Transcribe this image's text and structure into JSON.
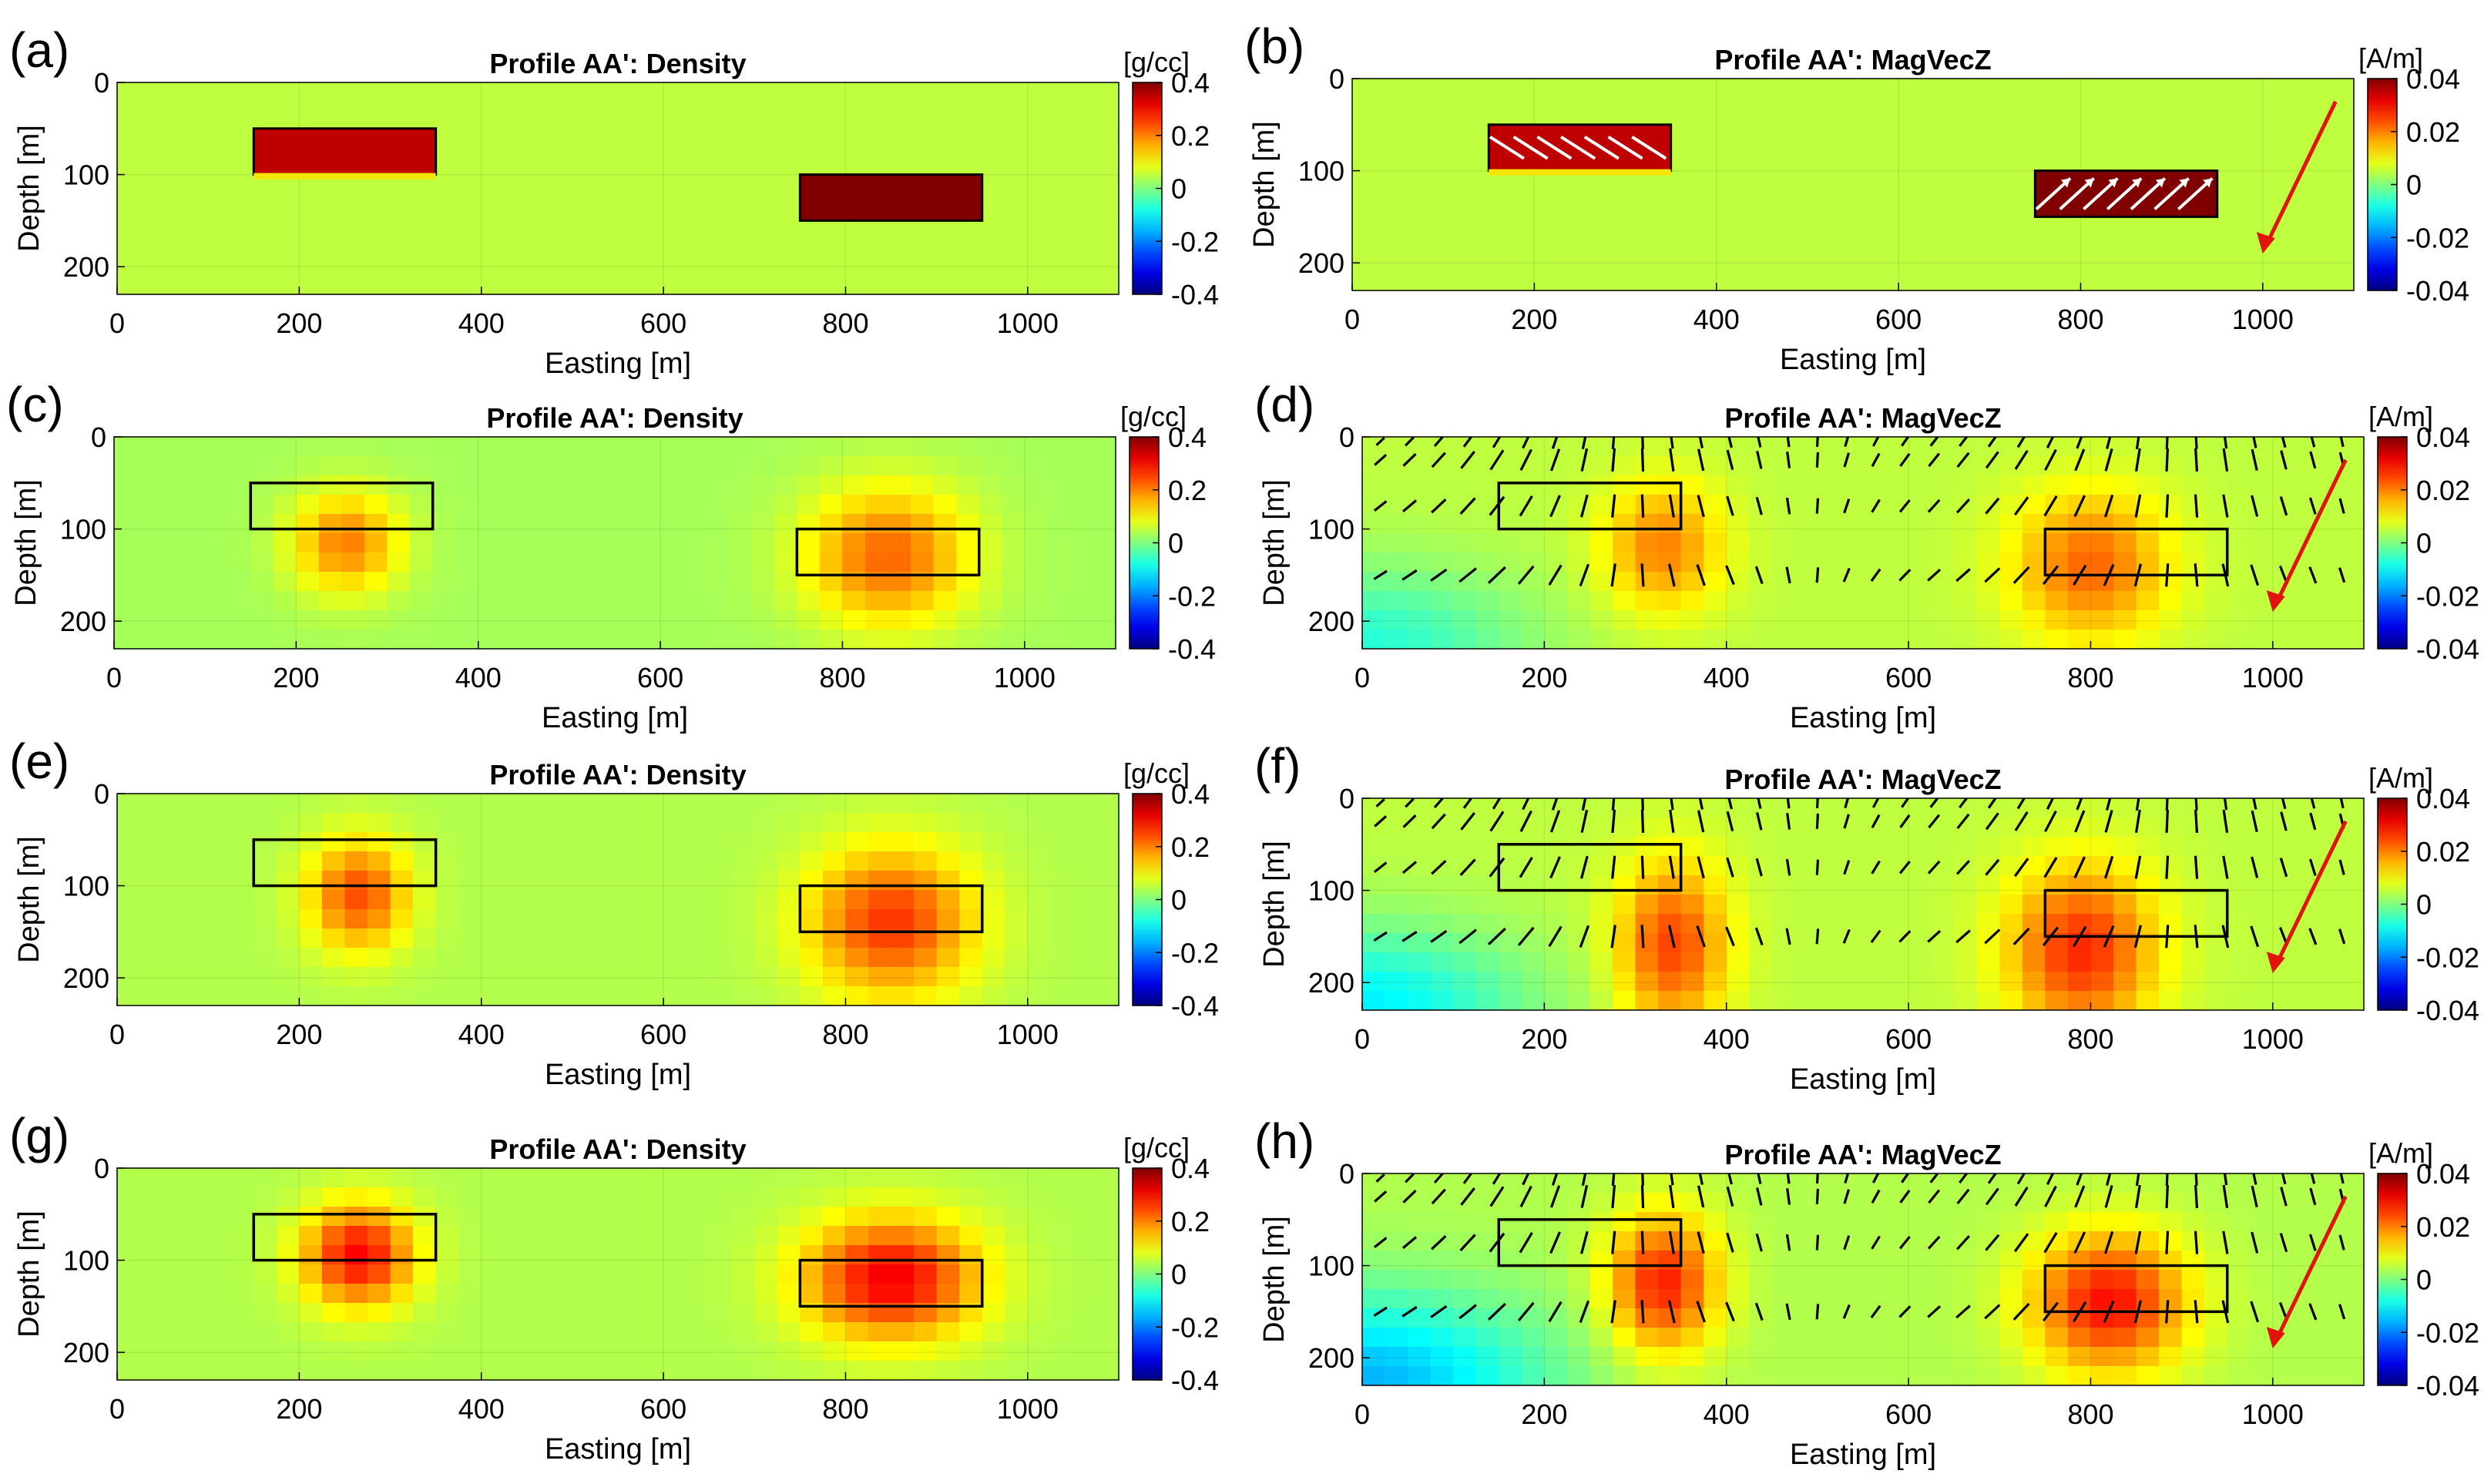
{
  "figure": {
    "units": {
      "density": "[g/cc]",
      "mag": "[A/m]"
    }
  },
  "chart_data": [
    {
      "letter": "(a)",
      "type": "heatmap",
      "title": "Profile AA': Density",
      "xlabel": "Easting [m]",
      "ylabel": "Depth [m]",
      "xlim": [
        0,
        1100
      ],
      "ylim": [
        0,
        230
      ],
      "xticks": [
        "0",
        "200",
        "400",
        "600",
        "800",
        "1000"
      ],
      "yticks": [
        "0",
        "100",
        "200"
      ],
      "colorbar": {
        "unit": "[g/cc]",
        "range": [
          -0.4,
          0.4
        ],
        "ticks": [
          "0.4",
          "0.2",
          "0",
          "-0.2",
          "-0.4"
        ]
      },
      "background_value": 0.05,
      "bodies": [
        {
          "x": [
            150,
            350
          ],
          "depth": [
            50,
            100
          ],
          "value": 0.35
        },
        {
          "x": [
            750,
            950
          ],
          "depth": [
            100,
            150
          ],
          "value": 0.4
        }
      ],
      "anomalies": [],
      "outlines": false,
      "vector_field": false,
      "arrows_in_bodies": false,
      "reference_arrow": false
    },
    {
      "letter": "(b)",
      "type": "heatmap",
      "title": "Profile AA': MagVecZ",
      "xlabel": "Easting [m]",
      "ylabel": "Depth [m]",
      "xlim": [
        0,
        1100
      ],
      "ylim": [
        0,
        230
      ],
      "xticks": [
        "0",
        "200",
        "400",
        "600",
        "800",
        "1000"
      ],
      "yticks": [
        "0",
        "100",
        "200"
      ],
      "colorbar": {
        "unit": "[A/m]",
        "range": [
          -0.04,
          0.04
        ],
        "ticks": [
          "0.04",
          "0.02",
          "0",
          "-0.02",
          "-0.04"
        ]
      },
      "background_value": 0.005,
      "bodies": [
        {
          "x": [
            150,
            350
          ],
          "depth": [
            50,
            100
          ],
          "value": 0.035
        },
        {
          "x": [
            750,
            950
          ],
          "depth": [
            100,
            150
          ],
          "value": 0.04
        }
      ],
      "anomalies": [],
      "outlines": false,
      "vector_field": false,
      "arrows_in_bodies": true,
      "reference_arrow": true
    },
    {
      "letter": "(c)",
      "type": "heatmap",
      "title": "Profile AA': Density",
      "xlabel": "Easting [m]",
      "ylabel": "Depth [m]",
      "xlim": [
        0,
        1100
      ],
      "ylim": [
        0,
        230
      ],
      "xticks": [
        "0",
        "200",
        "400",
        "600",
        "800",
        "1000"
      ],
      "yticks": [
        "0",
        "100",
        "200"
      ],
      "colorbar": {
        "unit": "[g/cc]",
        "range": [
          -0.4,
          0.4
        ],
        "ticks": [
          "0.4",
          "0.2",
          "0",
          "-0.2",
          "-0.4"
        ]
      },
      "background_value": 0.03,
      "bodies": [],
      "anomalies": [
        {
          "x": 255,
          "depth": 115,
          "amp": 0.17,
          "sx": 60,
          "sy": 55
        },
        {
          "x": 850,
          "depth": 130,
          "amp": 0.19,
          "sx": 90,
          "sy": 75
        }
      ],
      "outlines": true,
      "vector_field": false,
      "arrows_in_bodies": false,
      "reference_arrow": false
    },
    {
      "letter": "(d)",
      "type": "heatmap",
      "title": "Profile AA': MagVecZ",
      "xlabel": "Easting [m]",
      "ylabel": "Depth [m]",
      "xlim": [
        0,
        1100
      ],
      "ylim": [
        0,
        230
      ],
      "xticks": [
        "0",
        "200",
        "400",
        "600",
        "800",
        "1000"
      ],
      "yticks": [
        "0",
        "100",
        "200"
      ],
      "colorbar": {
        "unit": "[A/m]",
        "range": [
          -0.04,
          0.04
        ],
        "ticks": [
          "0.04",
          "0.02",
          "0",
          "-0.02",
          "-0.04"
        ]
      },
      "background_value": 0.005,
      "bodies": [],
      "anomalies": [
        {
          "x": 330,
          "depth": 120,
          "amp": 0.015,
          "sx": 65,
          "sy": 70
        },
        {
          "x": 800,
          "depth": 140,
          "amp": 0.017,
          "sx": 85,
          "sy": 80
        },
        {
          "x": 0,
          "depth": 230,
          "amp": -0.012,
          "sx": 180,
          "sy": 90
        }
      ],
      "outlines": true,
      "vector_field": true,
      "arrows_in_bodies": false,
      "reference_arrow": true
    },
    {
      "letter": "(e)",
      "type": "heatmap",
      "title": "Profile AA': Density",
      "xlabel": "Easting [m]",
      "ylabel": "Depth [m]",
      "xlim": [
        0,
        1100
      ],
      "ylim": [
        0,
        230
      ],
      "xticks": [
        "0",
        "200",
        "400",
        "600",
        "800",
        "1000"
      ],
      "yticks": [
        "0",
        "100",
        "200"
      ],
      "colorbar": {
        "unit": "[g/cc]",
        "range": [
          -0.4,
          0.4
        ],
        "ticks": [
          "0.4",
          "0.2",
          "0",
          "-0.2",
          "-0.4"
        ]
      },
      "background_value": 0.04,
      "bodies": [],
      "anomalies": [
        {
          "x": 265,
          "depth": 110,
          "amp": 0.2,
          "sx": 55,
          "sy": 60
        },
        {
          "x": 850,
          "depth": 140,
          "amp": 0.22,
          "sx": 90,
          "sy": 80
        }
      ],
      "outlines": true,
      "vector_field": false,
      "arrows_in_bodies": false,
      "reference_arrow": false
    },
    {
      "letter": "(f)",
      "type": "heatmap",
      "title": "Profile AA': MagVecZ",
      "xlabel": "Easting [m]",
      "ylabel": "Depth [m]",
      "xlim": [
        0,
        1100
      ],
      "ylim": [
        0,
        230
      ],
      "xticks": [
        "0",
        "200",
        "400",
        "600",
        "800",
        "1000"
      ],
      "yticks": [
        "0",
        "100",
        "200"
      ],
      "colorbar": {
        "unit": "[A/m]",
        "range": [
          -0.04,
          0.04
        ],
        "ticks": [
          "0.04",
          "0.02",
          "0",
          "-0.02",
          "-0.04"
        ]
      },
      "background_value": 0.005,
      "bodies": [],
      "anomalies": [
        {
          "x": 340,
          "depth": 160,
          "amp": 0.02,
          "sx": 60,
          "sy": 90
        },
        {
          "x": 790,
          "depth": 165,
          "amp": 0.022,
          "sx": 80,
          "sy": 90
        },
        {
          "x": 0,
          "depth": 230,
          "amp": -0.016,
          "sx": 180,
          "sy": 90
        }
      ],
      "outlines": true,
      "vector_field": true,
      "arrows_in_bodies": false,
      "reference_arrow": true
    },
    {
      "letter": "(g)",
      "type": "heatmap",
      "title": "Profile AA': Density",
      "xlabel": "Easting [m]",
      "ylabel": "Depth [m]",
      "xlim": [
        0,
        1100
      ],
      "ylim": [
        0,
        230
      ],
      "xticks": [
        "0",
        "200",
        "400",
        "600",
        "800",
        "1000"
      ],
      "yticks": [
        "0",
        "100",
        "200"
      ],
      "colorbar": {
        "unit": "[g/cc]",
        "range": [
          -0.4,
          0.4
        ],
        "ticks": [
          "0.4",
          "0.2",
          "0",
          "-0.2",
          "-0.4"
        ]
      },
      "background_value": 0.04,
      "bodies": [],
      "anomalies": [
        {
          "x": 265,
          "depth": 95,
          "amp": 0.26,
          "sx": 60,
          "sy": 55
        },
        {
          "x": 850,
          "depth": 120,
          "amp": 0.27,
          "sx": 95,
          "sy": 65
        }
      ],
      "outlines": true,
      "vector_field": false,
      "arrows_in_bodies": false,
      "reference_arrow": false
    },
    {
      "letter": "(h)",
      "type": "heatmap",
      "title": "Profile AA': MagVecZ",
      "xlabel": "Easting [m]",
      "ylabel": "Depth [m]",
      "xlim": [
        0,
        1100
      ],
      "ylim": [
        0,
        230
      ],
      "xticks": [
        "0",
        "200",
        "400",
        "600",
        "800",
        "1000"
      ],
      "yticks": [
        "0",
        "100",
        "200"
      ],
      "colorbar": {
        "unit": "[A/m]",
        "range": [
          -0.04,
          0.04
        ],
        "ticks": [
          "0.04",
          "0.02",
          "0",
          "-0.02",
          "-0.04"
        ]
      },
      "background_value": 0.004,
      "bodies": [],
      "anomalies": [
        {
          "x": 330,
          "depth": 120,
          "amp": 0.024,
          "sx": 60,
          "sy": 75
        },
        {
          "x": 820,
          "depth": 140,
          "amp": 0.025,
          "sx": 85,
          "sy": 75
        },
        {
          "x": 0,
          "depth": 230,
          "amp": -0.02,
          "sx": 200,
          "sy": 100
        }
      ],
      "outlines": true,
      "vector_field": true,
      "arrows_in_bodies": false,
      "reference_arrow": true
    }
  ]
}
